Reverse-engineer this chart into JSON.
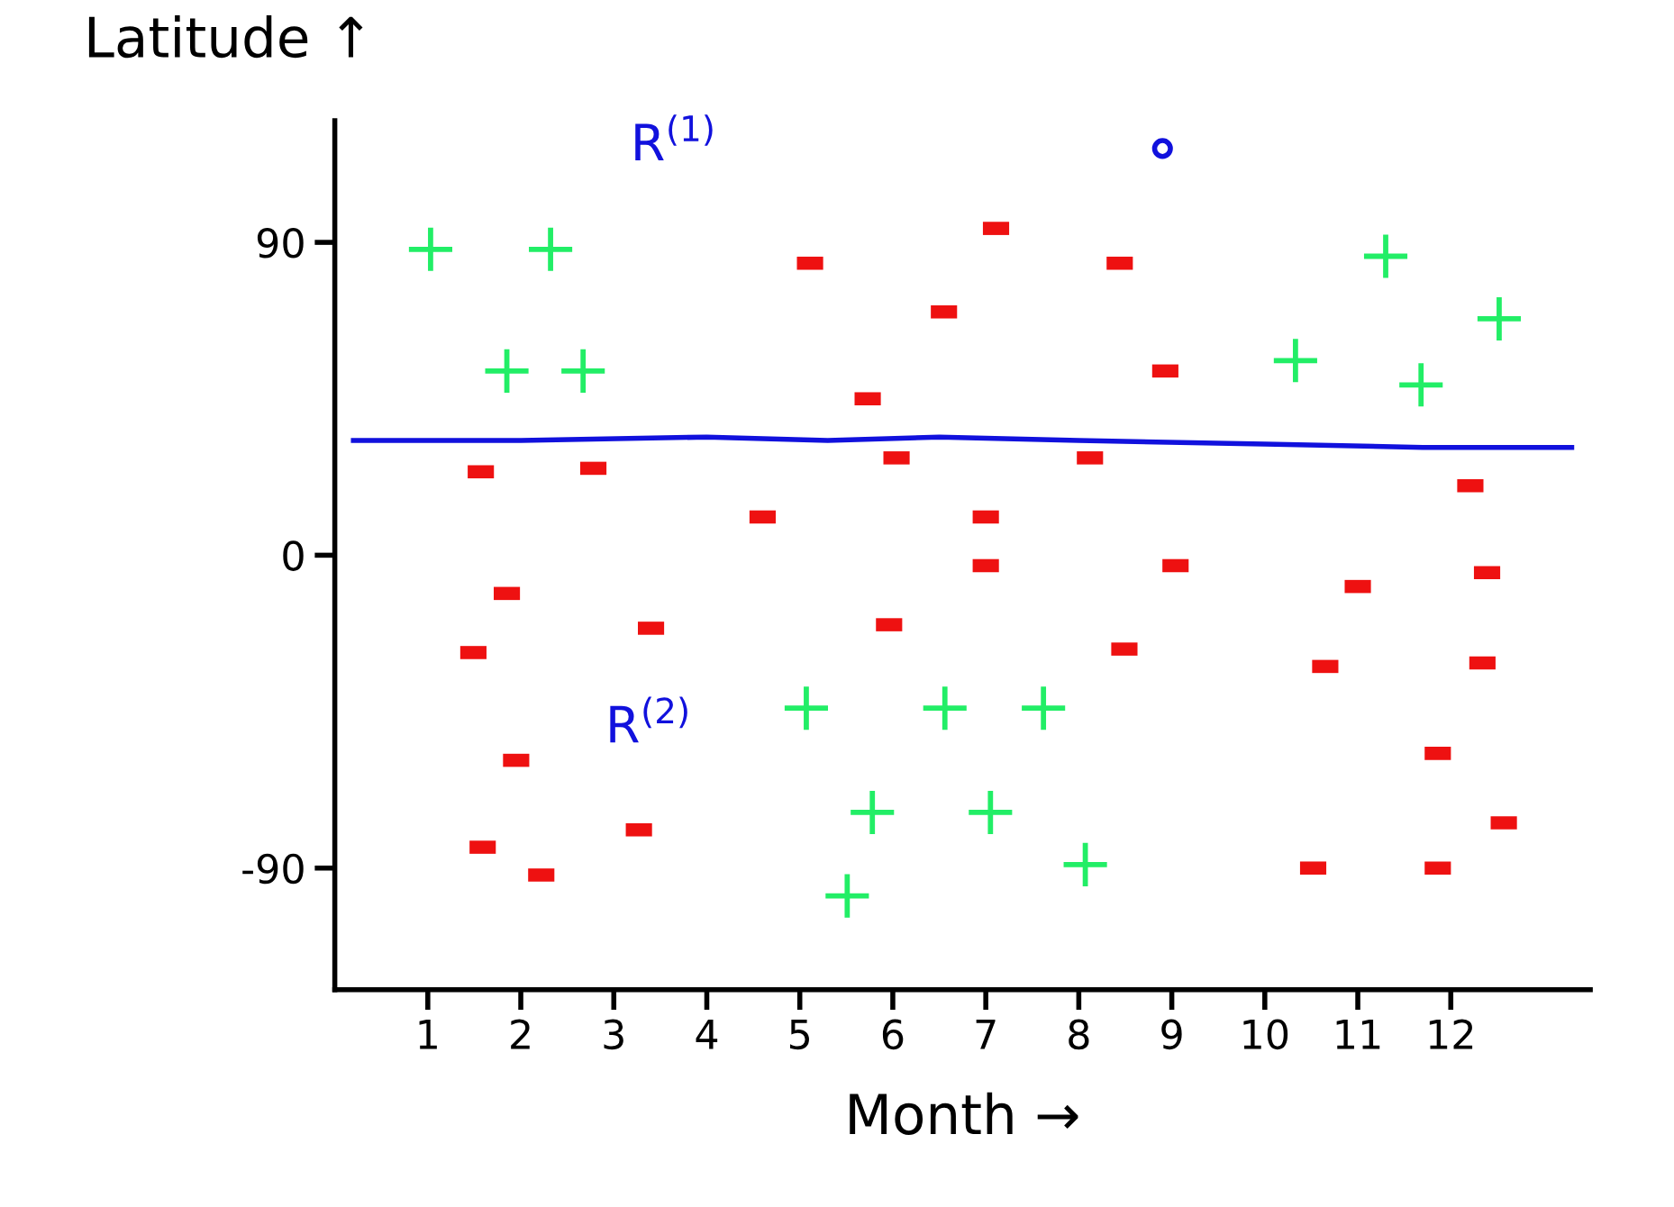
{
  "chart_data": {
    "type": "scatter",
    "xlabel": "Month →",
    "ylabel": "Latitude ↑",
    "xlim": [
      0,
      13.5
    ],
    "ylim": [
      -125,
      125
    ],
    "xticks": [
      1,
      2,
      3,
      4,
      5,
      6,
      7,
      8,
      9,
      10,
      11,
      12
    ],
    "yticks": [
      -90,
      0,
      90
    ],
    "grid": false,
    "series": [
      {
        "color": "#22ee66",
        "marker": "cross",
        "x": [
          1.03,
          2.32,
          1.85,
          2.67,
          10.33,
          11.3,
          11.68,
          12.52,
          5.07,
          6.56,
          7.62,
          5.78,
          7.05,
          5.51,
          8.07
        ],
        "values": [
          88,
          88,
          53,
          53,
          56,
          86,
          49,
          68,
          -44,
          -44,
          -44,
          -74,
          -74,
          -98,
          -89
        ]
      },
      {
        "color": "#ee1111",
        "x": [
          5.11,
          7.11,
          8.44,
          6.55,
          8.93,
          5.73,
          1.57,
          2.78,
          6.04,
          8.12,
          4.6,
          7.0,
          7.0,
          9.04,
          1.85,
          3.4,
          5.96,
          11.0,
          12.39,
          1.49,
          8.49,
          10.65,
          12.34,
          1.95,
          11.86,
          3.27,
          1.59,
          2.22,
          10.52,
          11.86,
          12.57,
          12.21
        ],
        "values": [
          84,
          94,
          84,
          70,
          53,
          45,
          24,
          25,
          28,
          28,
          11,
          11,
          -3,
          -3,
          -11,
          -21,
          -20,
          -9,
          -5,
          -28,
          -27,
          -32,
          -31,
          -59,
          -57,
          -79,
          -84,
          -92,
          -90,
          -90,
          -77,
          20
        ]
      },
      {
        "color": "#1111dd",
        "marker": "circle",
        "x": [
          8.9
        ],
        "values": [
          117
        ]
      },
      {
        "type": "line",
        "color": "#1111dd",
        "marker": "none",
        "x": [
          0.2,
          2,
          4,
          5.3,
          6.5,
          8,
          10,
          11.7,
          13.3
        ],
        "values": [
          33,
          33,
          34,
          33,
          34,
          33,
          32,
          31,
          31
        ]
      }
    ],
    "annotations": [
      "R$^{(1)}$",
      "R$^{(2)}$"
    ]
  }
}
